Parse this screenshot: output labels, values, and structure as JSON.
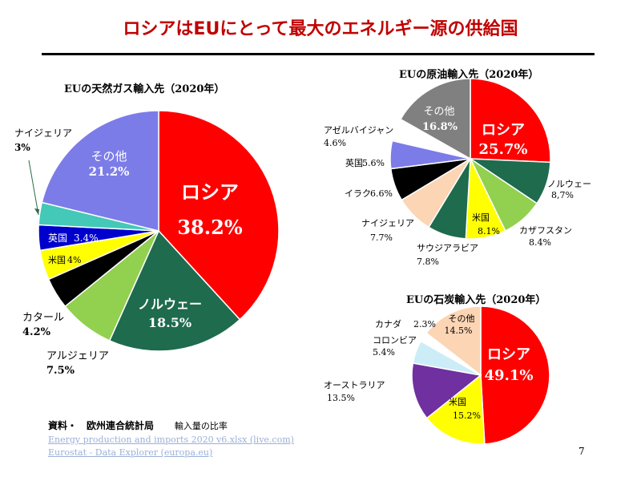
{
  "page": {
    "title": "ロシアはEUにとって最大のエネルギー源の供給国",
    "source_label": "資料・　欧州連合統計局",
    "source_note": "輸入量の比率",
    "links": [
      "Energy production and imports 2020 v6.xlsx (live.com)",
      "Eurostat - Data Explorer (europa.eu)"
    ],
    "page_number": "7"
  },
  "chart_data": [
    {
      "type": "pie",
      "id": "gas",
      "title": "EUの天然ガス輸入先（2020年）",
      "slices": [
        {
          "name": "ロシア",
          "value": 38.2,
          "label": "ロシア",
          "value_label": "38.2%",
          "color": "#ff0000",
          "text_color": "#ffffff"
        },
        {
          "name": "ノルウェー",
          "value": 18.5,
          "label": "ノルウェー",
          "value_label": "18.5%",
          "color": "#1e6b4e",
          "text_color": "#ffffff"
        },
        {
          "name": "アルジェリア",
          "value": 7.5,
          "label": "アルジェリア",
          "value_label": "7.5%",
          "color": "#92d050",
          "text_color": "#000000"
        },
        {
          "name": "カタール",
          "value": 4.2,
          "label": "カタール",
          "value_label": "4.2%",
          "color": "#000000",
          "text_color": "#000000"
        },
        {
          "name": "米国",
          "value": 4,
          "label": "米国",
          "value_label": "4%",
          "color": "#ffff00",
          "text_color": "#000000"
        },
        {
          "name": "英国",
          "value": 3.4,
          "label": "英国",
          "value_label": "3.4%",
          "color": "#0000cc",
          "text_color": "#ffffff"
        },
        {
          "name": "ナイジェリア",
          "value": 3,
          "label": "ナイジェリア",
          "value_label": "3%",
          "color": "#44c8b8",
          "text_color": "#000000"
        },
        {
          "name": "その他",
          "value": 21.2,
          "label": "その他",
          "value_label": "21.2%",
          "color": "#7c7ce8",
          "text_color": "#ffffff"
        }
      ]
    },
    {
      "type": "pie",
      "id": "oil",
      "title": "EUの原油輸入先（2020年）",
      "slices": [
        {
          "name": "ロシア",
          "value": 25.7,
          "label": "ロシア",
          "value_label": "25.7%",
          "color": "#ff0000",
          "text_color": "#ffffff"
        },
        {
          "name": "ノルウェー",
          "value": 8.7,
          "label": "ノルウェー",
          "value_label": "8,7%",
          "color": "#1e6b4e",
          "text_color": "#000000"
        },
        {
          "name": "カザフスタン",
          "value": 8.4,
          "label": "カザフスタン",
          "value_label": "8.4%",
          "color": "#92d050",
          "text_color": "#000000"
        },
        {
          "name": "米国",
          "value": 8.1,
          "label": "米国",
          "value_label": "8.1%",
          "color": "#ffff00",
          "text_color": "#000000"
        },
        {
          "name": "サウジアラビア",
          "value": 7.8,
          "label": "サウジアラビア",
          "value_label": "7.8%",
          "color": "#1e6b4e",
          "text_color": "#000000"
        },
        {
          "name": "ナイジェリア",
          "value": 7.7,
          "label": "ナイジェリア",
          "value_label": "7.7%",
          "color": "#fcd5b4",
          "text_color": "#000000"
        },
        {
          "name": "イラク",
          "value": 6.6,
          "label": "イラク",
          "value_label": "6.6%",
          "color": "#000000",
          "text_color": "#000000"
        },
        {
          "name": "英国",
          "value": 5.6,
          "label": "英国",
          "value_label": "5.6%",
          "color": "#7c7ce8",
          "text_color": "#000000"
        },
        {
          "name": "アゼルバイジャン",
          "value": 4.6,
          "label": "アゼルバイジャン",
          "value_label": "4.6%",
          "color": "#ffffff",
          "text_color": "#000000"
        },
        {
          "name": "その他",
          "value": 16.8,
          "label": "その他",
          "value_label": "16.8%",
          "color": "#808080",
          "text_color": "#ffffff"
        }
      ]
    },
    {
      "type": "pie",
      "id": "coal",
      "title": "EUの石炭輸入先（2020年）",
      "slices": [
        {
          "name": "ロシア",
          "value": 49.1,
          "label": "ロシア",
          "value_label": "49.1%",
          "color": "#ff0000",
          "text_color": "#ffffff"
        },
        {
          "name": "米国",
          "value": 15.2,
          "label": "米国",
          "value_label": "15.2%",
          "color": "#ffff00",
          "text_color": "#000000"
        },
        {
          "name": "オーストラリア",
          "value": 13.5,
          "label": "オーストラリア",
          "value_label": "13.5%",
          "color": "#7030a0",
          "text_color": "#000000"
        },
        {
          "name": "コロンビア",
          "value": 5.4,
          "label": "コロンビア",
          "value_label": "5.4%",
          "color": "#ccecf8",
          "text_color": "#000000"
        },
        {
          "name": "カナダ",
          "value": 2.3,
          "label": "カナダ",
          "value_label": "2.3%",
          "color": "#ffffff",
          "text_color": "#000000"
        },
        {
          "name": "その他",
          "value": 14.5,
          "label": "その他",
          "value_label": "14.5%",
          "color": "#fcd5b4",
          "text_color": "#000000"
        }
      ]
    }
  ]
}
